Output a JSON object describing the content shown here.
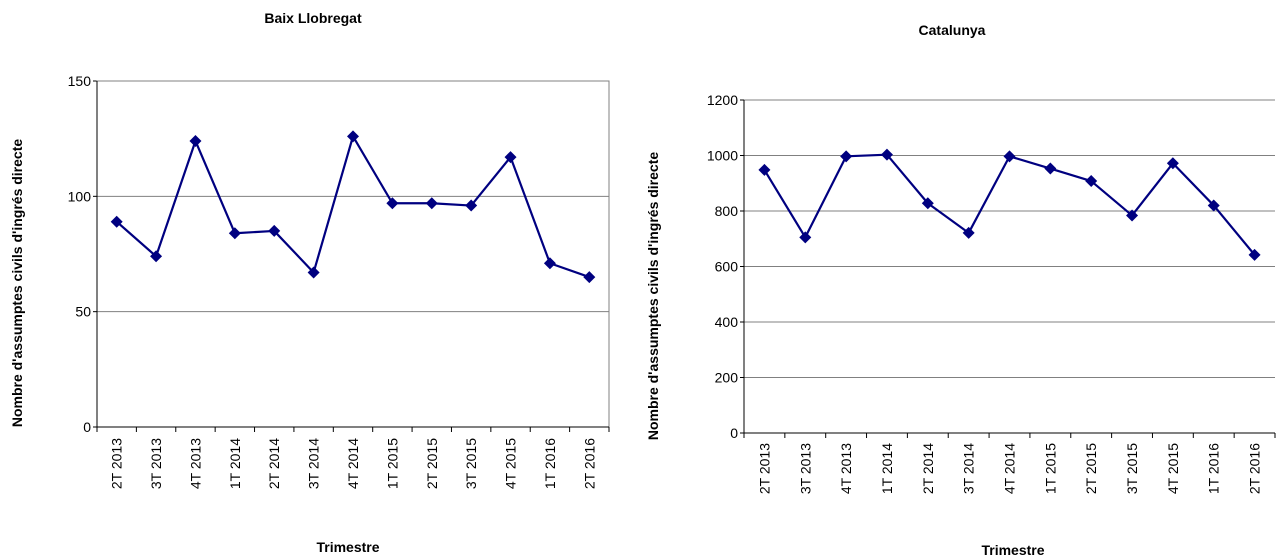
{
  "chart_data": [
    {
      "type": "line",
      "title": "Baix Llobregat",
      "xlabel": "Trimestre",
      "ylabel": "Nombre d'assumptes civils d'ingrés directe",
      "categories": [
        "2T 2013",
        "3T 2013",
        "4T 2013",
        "1T 2014",
        "2T 2014",
        "3T 2014",
        "4T 2014",
        "1T 2015",
        "2T 2015",
        "3T 2015",
        "4T 2015",
        "1T 2016",
        "2T 2016"
      ],
      "series": [
        {
          "values": [
            89,
            74,
            124,
            84,
            85,
            67,
            126,
            97,
            97,
            96,
            117,
            71,
            65
          ]
        }
      ],
      "ylim": [
        0,
        150
      ],
      "yticks": [
        0,
        50,
        100,
        150
      ],
      "grid": true,
      "color": "#000080"
    },
    {
      "type": "line",
      "title": "Catalunya",
      "xlabel": "Trimestre",
      "ylabel": "Nombre d'assumptes civils d'ingrés directe",
      "categories": [
        "2T 2013",
        "3T 2013",
        "4T 2013",
        "1T 2014",
        "2T 2014",
        "3T 2014",
        "4T 2014",
        "1T 2015",
        "2T 2015",
        "3T 2015",
        "4T 2015",
        "1T 2016",
        "2T 2016"
      ],
      "series": [
        {
          "values": [
            948,
            705,
            997,
            1003,
            828,
            721,
            997,
            953,
            908,
            784,
            972,
            820,
            642
          ]
        }
      ],
      "ylim": [
        0,
        1200
      ],
      "yticks": [
        0,
        200,
        400,
        600,
        800,
        1000,
        1200
      ],
      "grid": true,
      "color": "#000080"
    }
  ]
}
